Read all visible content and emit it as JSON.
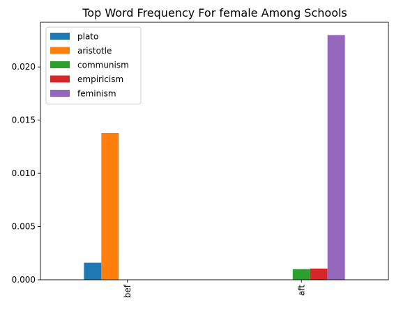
{
  "chart_data": {
    "type": "bar",
    "title": "Top Word Frequency For female Among Schools",
    "xlabel": "",
    "ylabel": "",
    "categories": [
      "bef",
      "aft"
    ],
    "series": [
      {
        "name": "plato",
        "values": [
          0.0016,
          0
        ],
        "color": "#1f77b4"
      },
      {
        "name": "aristotle",
        "values": [
          0.0138,
          0
        ],
        "color": "#ff7f0e"
      },
      {
        "name": "communism",
        "values": [
          0,
          0.001
        ],
        "color": "#2ca02c"
      },
      {
        "name": "empiricism",
        "values": [
          0,
          0.00105
        ],
        "color": "#d62728"
      },
      {
        "name": "feminism",
        "values": [
          0,
          0.023
        ],
        "color": "#9467bd"
      }
    ],
    "ylim": [
      0,
      0.0242
    ],
    "yticks": [
      0.0,
      0.005,
      0.01,
      0.015,
      0.02
    ],
    "ytick_labels": [
      "0.000",
      "0.005",
      "0.010",
      "0.015",
      "0.020"
    ],
    "grid": false,
    "legend_position": "top-left"
  }
}
